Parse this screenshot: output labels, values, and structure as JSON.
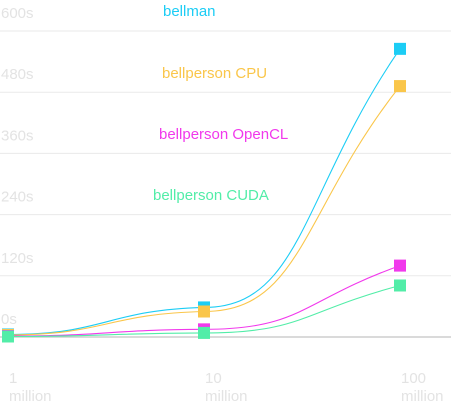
{
  "chart_data": {
    "type": "line",
    "x_scale": "log",
    "x": [
      1000000,
      10000000,
      100000000
    ],
    "x_tick_labels": [
      [
        "1",
        "million"
      ],
      [
        "10",
        "million"
      ],
      [
        "100",
        "million"
      ]
    ],
    "y_ticks": [
      "600s",
      "480s",
      "360s",
      "240s",
      "120s",
      "0s"
    ],
    "y_tick_values": [
      600,
      480,
      360,
      240,
      120,
      0
    ],
    "ylim": [
      0,
      600
    ],
    "grid": true,
    "legend_placement": "top-center",
    "series": [
      {
        "name": "bellman",
        "color": "#1ccdf5",
        "values": [
          5,
          58,
          565
        ]
      },
      {
        "name": "bellperson CPU",
        "color": "#fac64a",
        "values": [
          4,
          50,
          492
        ]
      },
      {
        "name": "bellperson OpenCL",
        "color": "#f139ec",
        "values": [
          2,
          15,
          140
        ]
      },
      {
        "name": "bellperson CUDA",
        "color": "#52eda8",
        "values": [
          1,
          8,
          101
        ]
      }
    ],
    "colors": {
      "gridline": "#eaeaea",
      "axis": "#c4c4c4",
      "tick_text": "#e3e3e3"
    }
  }
}
